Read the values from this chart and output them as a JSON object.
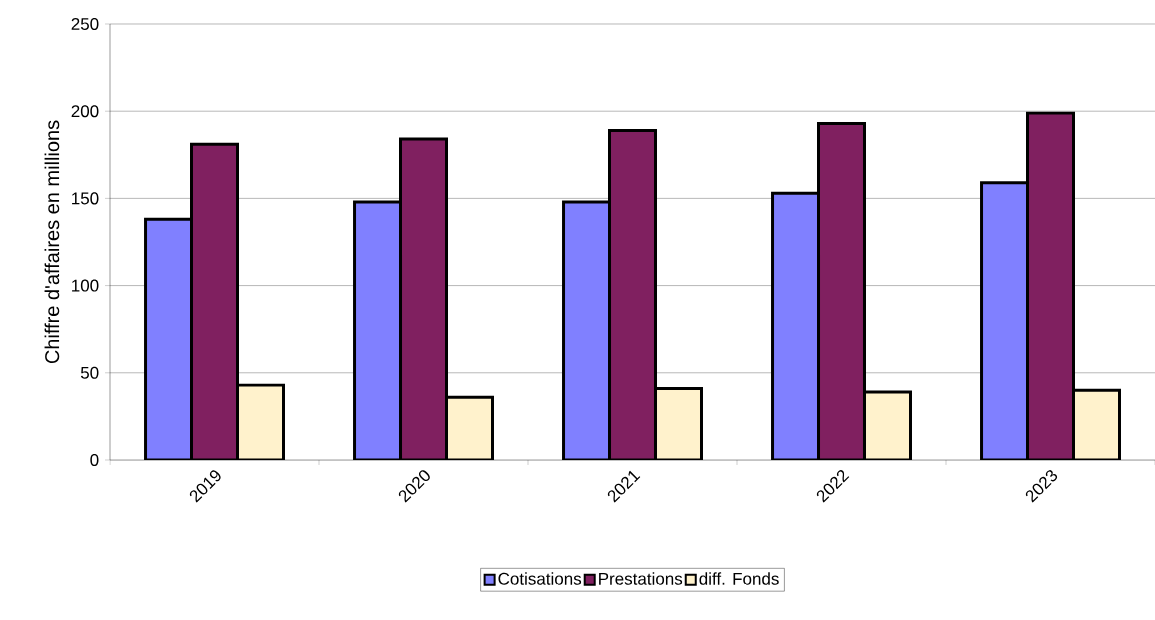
{
  "chart_data": {
    "type": "bar",
    "ylabel": "Chiffre d'affaires en millions",
    "categories": [
      "2019",
      "2020",
      "2021",
      "2022",
      "2023"
    ],
    "series": [
      {
        "name": "Cotisations",
        "color": "#8080ff",
        "values": [
          138,
          148,
          148,
          153,
          159
        ]
      },
      {
        "name": "Prestations",
        "color": "#802060",
        "values": [
          181,
          184,
          189,
          193,
          199
        ]
      },
      {
        "name": "diff. Fonds",
        "color": "#fff2cc",
        "values": [
          43,
          36,
          41,
          39,
          40
        ]
      }
    ],
    "ylim": [
      0,
      250
    ],
    "yticks": [
      0,
      50,
      100,
      150,
      200,
      250
    ],
    "grid": "y",
    "legend": "bottom"
  }
}
